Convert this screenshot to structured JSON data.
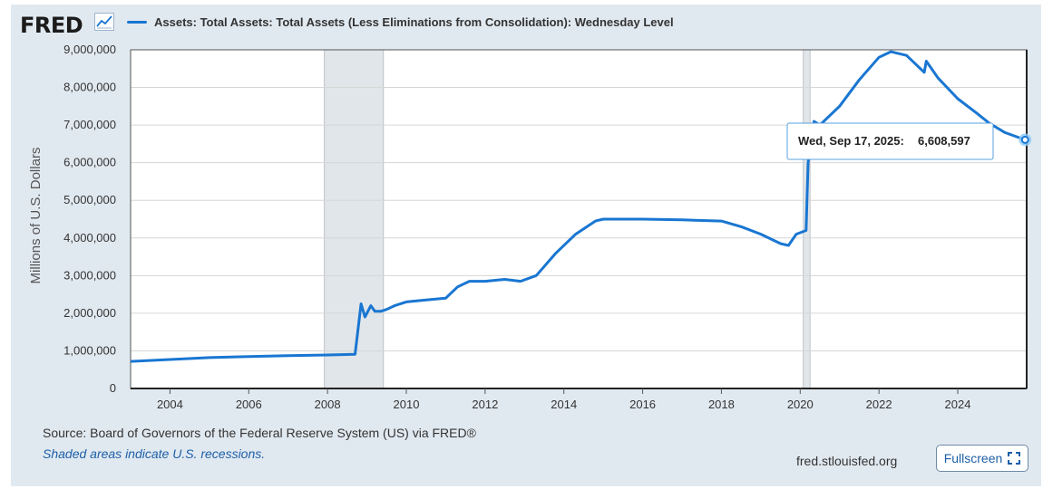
{
  "header": {
    "logo_text": "FRED",
    "logo_icon": "chart-line-icon"
  },
  "chart_data": {
    "type": "line",
    "series_name": "Assets: Total Assets: Total Assets (Less Eliminations from Consolidation): Wednesday Level",
    "ylabel": "Millions of U.S. Dollars",
    "xlim": [
      2003.0,
      2025.75
    ],
    "ylim": [
      0,
      9000000
    ],
    "y_ticks": [
      0,
      1000000,
      2000000,
      3000000,
      4000000,
      5000000,
      6000000,
      7000000,
      8000000,
      9000000
    ],
    "y_tick_labels": [
      "0",
      "1,000,000",
      "2,000,000",
      "3,000,000",
      "4,000,000",
      "5,000,000",
      "6,000,000",
      "7,000,000",
      "8,000,000",
      "9,000,000"
    ],
    "x_ticks": [
      2004,
      2006,
      2008,
      2010,
      2012,
      2014,
      2016,
      2018,
      2020,
      2022,
      2024
    ],
    "x_tick_labels": [
      "2004",
      "2006",
      "2008",
      "2010",
      "2012",
      "2014",
      "2016",
      "2018",
      "2020",
      "2022",
      "2024"
    ],
    "recessions": [
      [
        2007.92,
        2009.42
      ],
      [
        2020.08,
        2020.25
      ]
    ],
    "x": [
      2003.0,
      2004.0,
      2005.0,
      2006.0,
      2007.0,
      2008.0,
      2008.7,
      2008.85,
      2008.95,
      2009.1,
      2009.2,
      2009.35,
      2009.5,
      2009.7,
      2010.0,
      2010.5,
      2011.0,
      2011.3,
      2011.6,
      2012.0,
      2012.5,
      2012.9,
      2013.3,
      2013.8,
      2014.3,
      2014.8,
      2015.0,
      2016.0,
      2017.0,
      2018.0,
      2018.5,
      2019.0,
      2019.5,
      2019.7,
      2019.9,
      2020.15,
      2020.2,
      2020.35,
      2020.5,
      2021.0,
      2021.5,
      2022.0,
      2022.3,
      2022.7,
      2023.0,
      2023.15,
      2023.2,
      2023.5,
      2024.0,
      2024.5,
      2024.8,
      2025.2,
      2025.71
    ],
    "values": [
      720000,
      770000,
      820000,
      850000,
      870000,
      890000,
      910000,
      2250000,
      1900000,
      2200000,
      2050000,
      2050000,
      2100000,
      2200000,
      2300000,
      2350000,
      2400000,
      2700000,
      2850000,
      2850000,
      2900000,
      2850000,
      3000000,
      3600000,
      4100000,
      4450000,
      4500000,
      4500000,
      4480000,
      4450000,
      4300000,
      4100000,
      3850000,
      3800000,
      4100000,
      4200000,
      6000000,
      7100000,
      7000000,
      7500000,
      8200000,
      8800000,
      8950000,
      8850000,
      8550000,
      8400000,
      8700000,
      8250000,
      7700000,
      7300000,
      7050000,
      6800000,
      6608597
    ],
    "tooltip": {
      "x": 2025.71,
      "date_label": "Wed, Sep 17, 2025:",
      "value_label": "6,608,597"
    },
    "line_color": "#1976d2",
    "recession_color": "#e1e6ea"
  },
  "footer": {
    "source": "Source: Board of Governors of the Federal Reserve System (US) via FRED®",
    "note": "Shaded areas indicate U.S. recessions.",
    "site": "fred.stlouisfed.org",
    "fullscreen_label": "Fullscreen"
  }
}
